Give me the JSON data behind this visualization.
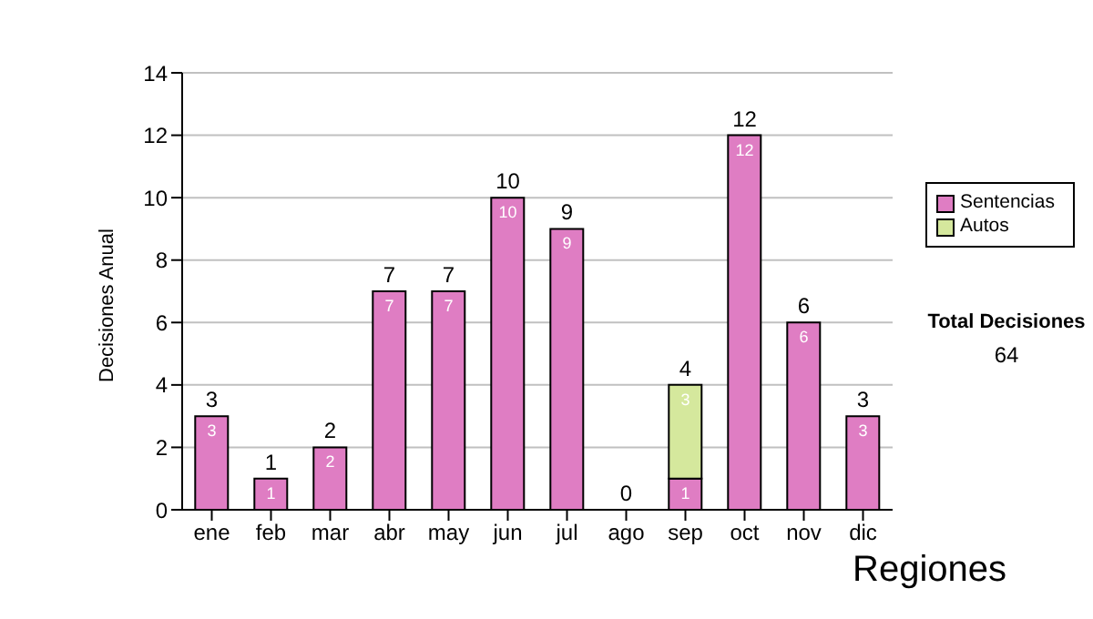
{
  "chart_data": {
    "type": "bar",
    "ylabel": "Decisiones Anual",
    "categories": [
      "ene",
      "feb",
      "mar",
      "abr",
      "may",
      "jun",
      "jul",
      "ago",
      "sep",
      "oct",
      "nov",
      "dic"
    ],
    "series": [
      {
        "name": "Sentencias",
        "color": "#df7dc3",
        "values": [
          3,
          1,
          2,
          7,
          7,
          10,
          9,
          0,
          1,
          12,
          6,
          3
        ],
        "value_labels": [
          "3",
          "1",
          "2",
          "7",
          "7",
          "10",
          "9",
          null,
          "1",
          "12",
          "6",
          "3"
        ]
      },
      {
        "name": "Autos",
        "color": "#d5e89d",
        "values": [
          0,
          0,
          0,
          0,
          0,
          0,
          0,
          0,
          3,
          0,
          0,
          0
        ],
        "value_labels": [
          null,
          null,
          null,
          null,
          null,
          null,
          null,
          null,
          "3",
          null,
          null,
          null
        ]
      }
    ],
    "stacked": true,
    "totals": [
      "3",
      "1",
      "2",
      "7",
      "7",
      "10",
      "9",
      "0",
      "4",
      "12",
      "6",
      "3"
    ],
    "ylim": [
      0,
      14
    ],
    "yticks": [
      0,
      2,
      4,
      6,
      8,
      10,
      12,
      14
    ],
    "grid": "y",
    "legend": "right",
    "annotations": [
      "Total Decisiones",
      "64",
      "Regiones"
    ]
  }
}
